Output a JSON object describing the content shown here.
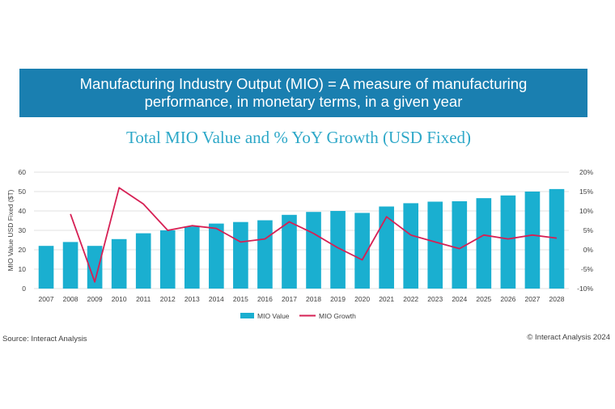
{
  "banner": {
    "line1": "Manufacturing Industry Output (MIO) =  A measure of manufacturing",
    "line2": "performance, in monetary terms, in a given year"
  },
  "footer": {
    "source": "Source: Interact Analysis",
    "copyright": "© Interact Analysis 2024"
  },
  "colors": {
    "bar": "#1aafd0",
    "line": "#d62054",
    "banner": "#1a7fb0",
    "title": "#2ea8c8"
  },
  "chart_data": {
    "type": "bar",
    "title": "Total MIO Value and % YoY Growth (USD Fixed)",
    "ylabel": "MIO Value USD Fixed ($T)",
    "ylim": [
      0,
      60
    ],
    "yticks": [
      "0",
      "10",
      "20",
      "30",
      "40",
      "50",
      "60"
    ],
    "y2lim": [
      -10,
      20
    ],
    "y2ticks": [
      "-10%",
      "-5%",
      "0%",
      "5%",
      "10%",
      "15%",
      "20%"
    ],
    "categories": [
      "2007",
      "2008",
      "2009",
      "2010",
      "2011",
      "2012",
      "2013",
      "2014",
      "2015",
      "2016",
      "2017",
      "2018",
      "2019",
      "2020",
      "2021",
      "2022",
      "2023",
      "2024",
      "2025",
      "2026",
      "2027",
      "2028"
    ],
    "series": [
      {
        "name": "MIO Value",
        "type": "bar",
        "axis": "left",
        "values": [
          22,
          24,
          22,
          25.5,
          28.5,
          30,
          32,
          33.5,
          34.3,
          35.2,
          38,
          39.5,
          40,
          39,
          42.3,
          44,
          44.8,
          45,
          46.6,
          48,
          50,
          51.3
        ]
      },
      {
        "name": "MIO Growth",
        "type": "line",
        "axis": "right",
        "values": [
          null,
          9.2,
          -8.3,
          16,
          11.8,
          5,
          6.2,
          5.5,
          2,
          2.8,
          7.2,
          4.2,
          0.5,
          -2.6,
          8.5,
          3.8,
          2,
          0.3,
          3.8,
          2.8,
          3.8,
          3
        ]
      }
    ],
    "legend": [
      "MIO Value",
      "MIO Growth"
    ],
    "legend_position": "bottom"
  }
}
